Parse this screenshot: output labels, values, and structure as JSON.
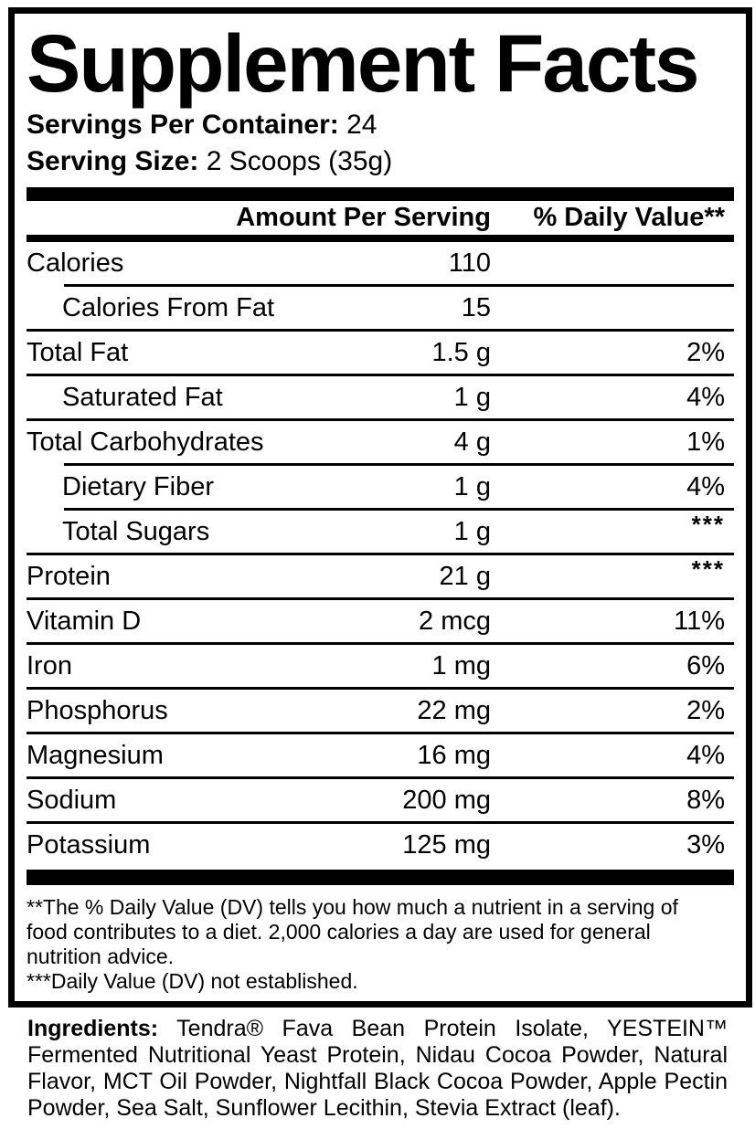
{
  "colors": {
    "ink": "#000000",
    "paper": "#ffffff"
  },
  "title": "Supplement Facts",
  "servings_per_container": {
    "label": "Servings Per Container:",
    "value": "24"
  },
  "serving_size": {
    "label": "Serving Size:",
    "value": "2 Scoops (35g)"
  },
  "table": {
    "header": {
      "amount": "Amount Per Serving",
      "dv": "% Daily Value**"
    },
    "rows": [
      {
        "name": "Calories",
        "amount": "110",
        "dv": "",
        "indent": false,
        "separator": "none"
      },
      {
        "name": "Calories From Fat",
        "amount": "15",
        "dv": "",
        "indent": true,
        "separator": "indent"
      },
      {
        "name": "Total Fat",
        "amount": "1.5 g",
        "dv": "2%",
        "indent": false,
        "separator": "full"
      },
      {
        "name": "Saturated Fat",
        "amount": "1 g",
        "dv": "4%",
        "indent": true,
        "separator": "full"
      },
      {
        "name": "Total Carbohydrates",
        "amount": "4 g",
        "dv": "1%",
        "indent": false,
        "separator": "full"
      },
      {
        "name": "Dietary Fiber",
        "amount": "1 g",
        "dv": "4%",
        "indent": true,
        "separator": "indent"
      },
      {
        "name": "Total Sugars",
        "amount": "1 g",
        "dv": "***",
        "indent": true,
        "separator": "indent"
      },
      {
        "name": "Protein",
        "amount": "21 g",
        "dv": "***",
        "indent": false,
        "separator": "full"
      },
      {
        "name": "Vitamin D",
        "amount": "2 mcg",
        "dv": "11%",
        "indent": false,
        "separator": "full"
      },
      {
        "name": "Iron",
        "amount": "1 mg",
        "dv": "6%",
        "indent": false,
        "separator": "full"
      },
      {
        "name": "Phosphorus",
        "amount": "22 mg",
        "dv": "2%",
        "indent": false,
        "separator": "full"
      },
      {
        "name": "Magnesium",
        "amount": "16 mg",
        "dv": "4%",
        "indent": false,
        "separator": "full"
      },
      {
        "name": "Sodium",
        "amount": "200 mg",
        "dv": "8%",
        "indent": false,
        "separator": "full"
      },
      {
        "name": "Potassium",
        "amount": "125 mg",
        "dv": "3%",
        "indent": false,
        "separator": "full"
      }
    ]
  },
  "footnotes": {
    "lines": [
      "**The % Daily Value (DV) tells you how much a nutrient in a serving of",
      "food contributes to a diet. 2,000 calories a day are used for general",
      "nutrition advice.",
      "***Daily Value (DV) not established."
    ]
  },
  "ingredients": {
    "label": "Ingredients:",
    "text": " Tendra® Fava Bean Protein Isolate, YESTEIN™ Fermented Nutritional Yeast Protein, Nidau Cocoa Powder, Natural Flavor, MCT Oil Powder, Nightfall Black Cocoa Powder, Apple Pectin Powder, Sea Salt, Sunflower Lecithin, Stevia Extract (leaf)."
  }
}
